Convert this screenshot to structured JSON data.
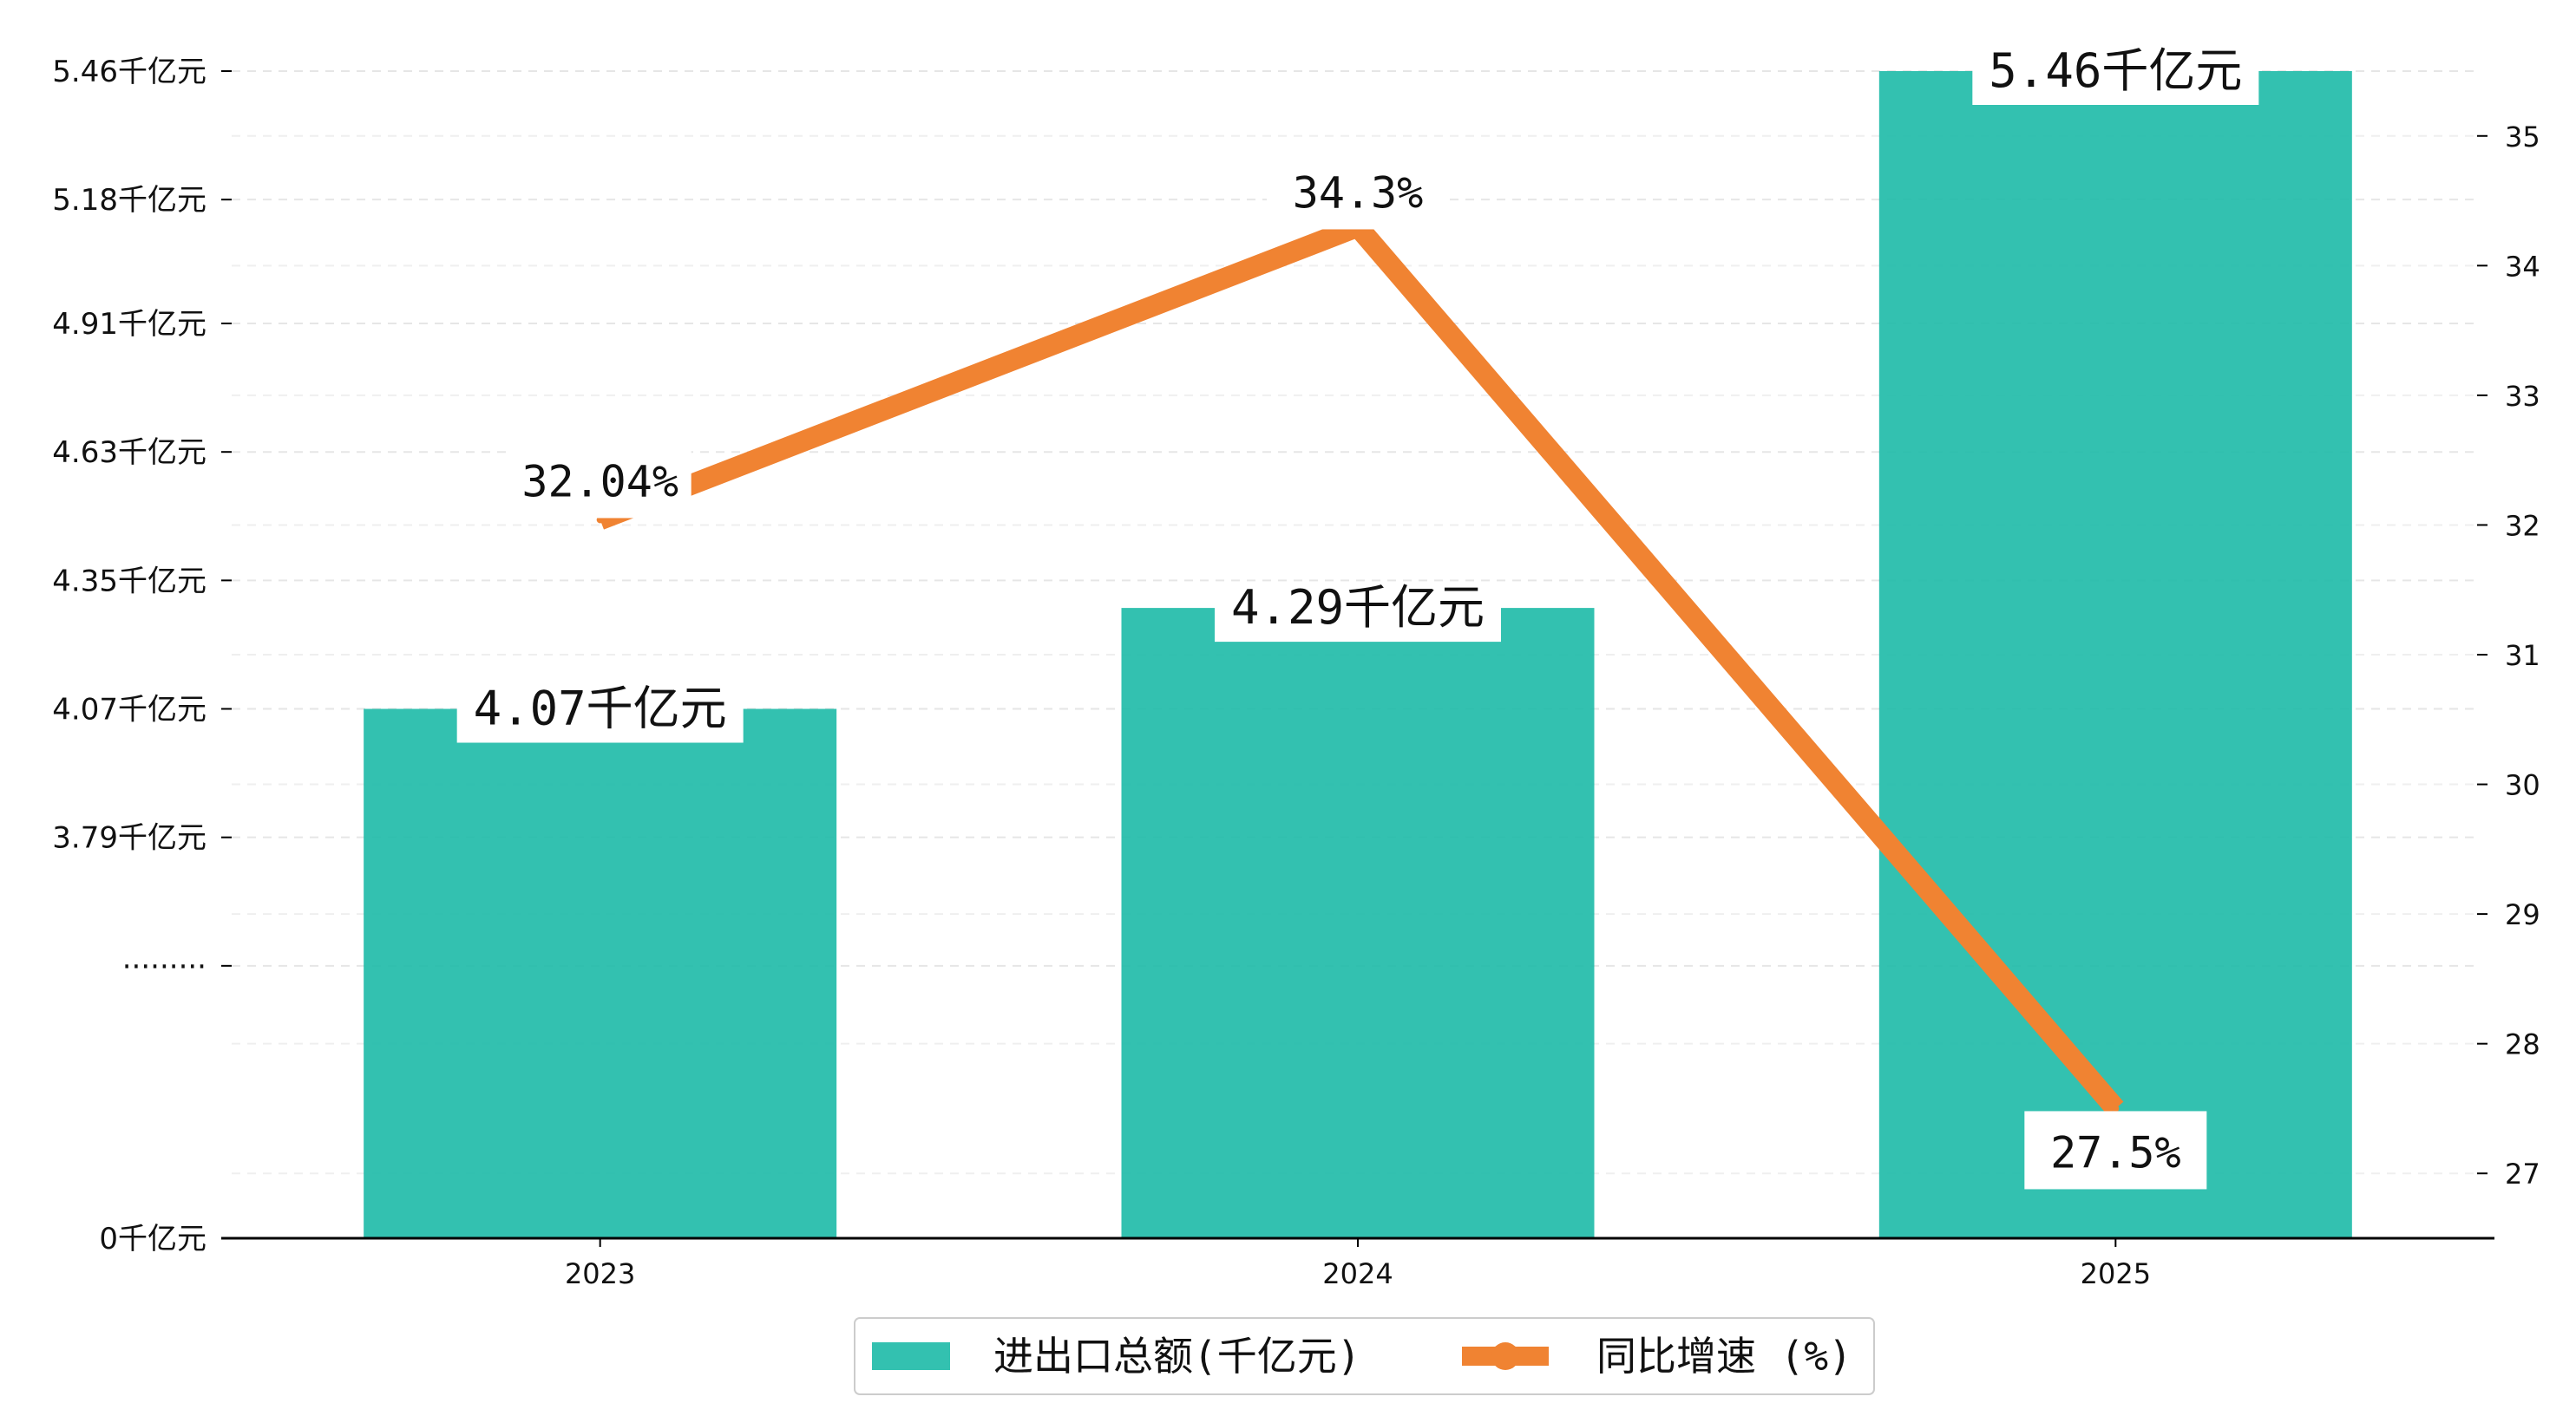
{
  "chart_data": {
    "type": "bar+line",
    "categories": [
      "2023",
      "2024",
      "2025"
    ],
    "bars": {
      "name": "进出口总额(千亿元)",
      "values": [
        4.07,
        4.29,
        5.46
      ],
      "labels": [
        "4.07千亿元",
        "4.29千亿元",
        "5.46千亿元"
      ],
      "color": "#1dbaa7"
    },
    "line": {
      "name": "同比增速 (%)",
      "values": [
        32.04,
        34.3,
        27.5
      ],
      "labels": [
        "32.04%",
        "34.3%",
        "27.5%"
      ],
      "color": "#f08332"
    },
    "y_left": {
      "tick_values": [
        0,
        3.51,
        3.79,
        4.07,
        4.35,
        4.63,
        4.91,
        5.18,
        5.46
      ],
      "tick_labels": [
        "0千亿元",
        "·········",
        "3.79千亿元",
        "4.07千亿元",
        "4.35千亿元",
        "4.63千亿元",
        "4.91千亿元",
        "5.18千亿元",
        "5.46千亿元"
      ],
      "axis_break": true,
      "display_min": 3.23,
      "display_max": 5.46
    },
    "y_right": {
      "ticks": [
        27,
        28,
        29,
        30,
        31,
        32,
        33,
        34,
        35
      ],
      "ylim": [
        26.5,
        35.5
      ]
    },
    "grid": "horizontal dashed",
    "legend_position": "bottom-center"
  }
}
